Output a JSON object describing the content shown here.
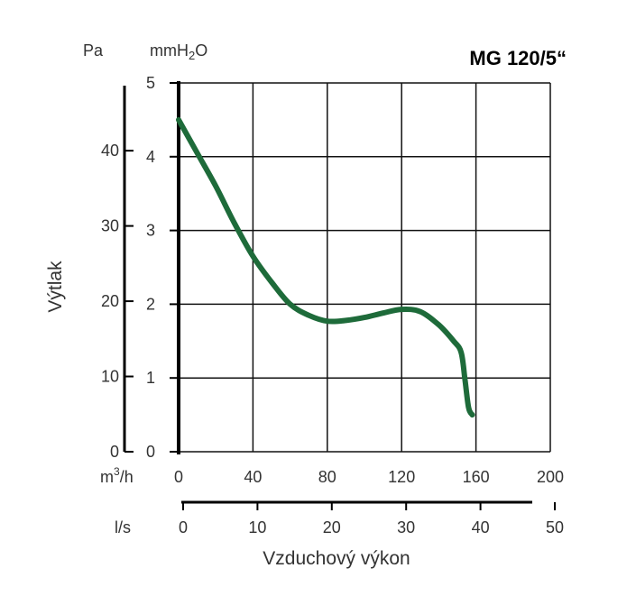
{
  "chart_data": {
    "type": "line",
    "title": "MG 120/5“",
    "xlabel": "Vzduchový výkon",
    "ylabel": "Výtlak",
    "x_primary": {
      "unit": "m3/h",
      "ticks": [
        "0",
        "40",
        "80",
        "120",
        "160",
        "200"
      ],
      "range": [
        0,
        200
      ]
    },
    "x_secondary": {
      "unit": "l/s",
      "ticks": [
        "0",
        "10",
        "20",
        "30",
        "40",
        "50"
      ],
      "range": [
        0,
        50
      ]
    },
    "y_primary": {
      "unit": "mmH2O",
      "ticks": [
        "0",
        "1",
        "2",
        "3",
        "4",
        "5"
      ],
      "range": [
        0,
        5
      ]
    },
    "y_secondary": {
      "unit": "Pa",
      "ticks": [
        "0",
        "10",
        "20",
        "30",
        "40"
      ],
      "range": [
        0,
        49
      ]
    },
    "grid": true,
    "series": [
      {
        "color": "#1e6b3a",
        "x": [
          0,
          10,
          20,
          30,
          40,
          50,
          60,
          70,
          80,
          90,
          100,
          110,
          120,
          130,
          140,
          148,
          152,
          154,
          156,
          158
        ],
        "y": [
          4.5,
          4.05,
          3.6,
          3.1,
          2.65,
          2.3,
          2.0,
          1.85,
          1.77,
          1.78,
          1.82,
          1.88,
          1.93,
          1.9,
          1.72,
          1.5,
          1.35,
          1.0,
          0.6,
          0.5
        ]
      }
    ]
  }
}
